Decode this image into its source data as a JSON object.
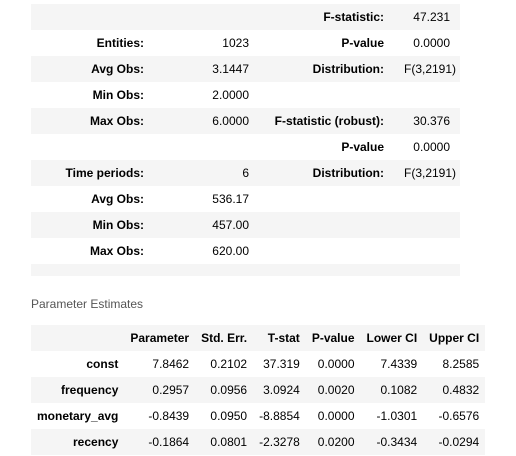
{
  "summary": {
    "rows": [
      [
        "",
        "",
        "F-statistic:",
        "47.231"
      ],
      [
        "Entities:",
        "1023",
        "P-value",
        "0.0000"
      ],
      [
        "Avg Obs:",
        "3.1447",
        "Distribution:",
        "F(3,2191)"
      ],
      [
        "Min Obs:",
        "2.0000",
        "",
        ""
      ],
      [
        "Max Obs:",
        "6.0000",
        "F-statistic (robust):",
        "30.376"
      ],
      [
        "",
        "",
        "P-value",
        "0.0000"
      ],
      [
        "Time periods:",
        "6",
        "Distribution:",
        "F(3,2191)"
      ],
      [
        "Avg Obs:",
        "536.17",
        "",
        ""
      ],
      [
        "Min Obs:",
        "457.00",
        "",
        ""
      ],
      [
        "Max Obs:",
        "620.00",
        "",
        ""
      ],
      [
        "",
        "",
        "",
        ""
      ]
    ]
  },
  "parameter_estimates": {
    "caption": "Parameter Estimates",
    "columns": [
      "",
      "Parameter",
      "Std. Err.",
      "T-stat",
      "P-value",
      "Lower CI",
      "Upper CI"
    ],
    "rows": [
      [
        "const",
        "7.8462",
        "0.2102",
        "37.319",
        "0.0000",
        "7.4339",
        "8.2585"
      ],
      [
        "frequency",
        "0.2957",
        "0.0956",
        "3.0924",
        "0.0020",
        "0.1082",
        "0.4832"
      ],
      [
        "monetary_avg",
        "-0.8439",
        "0.0950",
        "-8.8854",
        "0.0000",
        "-1.0301",
        "-0.6576"
      ],
      [
        "recency",
        "-0.1864",
        "0.0801",
        "-2.3278",
        "0.0200",
        "-0.3434",
        "-0.0294"
      ]
    ]
  }
}
